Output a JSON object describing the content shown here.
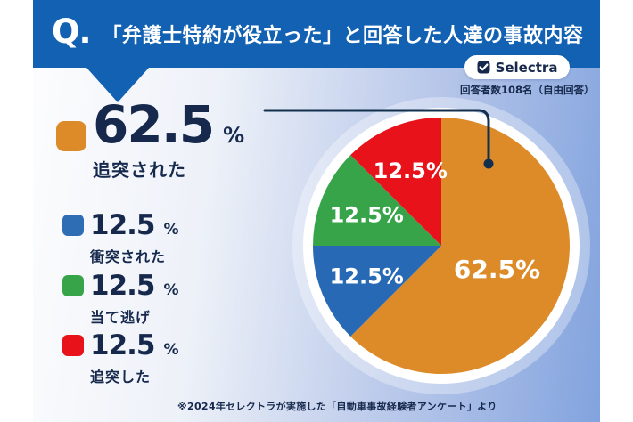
{
  "header": {
    "q_prefix": "Q.",
    "title": "「弁護士特約が役立った」と回答した人達の事故内容"
  },
  "brand": {
    "name": "Selectra",
    "icon": "check-square-icon"
  },
  "respondents_note": "回答者数108名（自由回答）",
  "footer_note": "※2024年セレクトラが実施した「自動車事故経験者アンケート」より",
  "colors": {
    "banner": "#1261B3",
    "background_right": "#82A3DE",
    "text_navy": "#16294D",
    "callout": "#12304E",
    "badge_bg": "#FFFFFF"
  },
  "legend": {
    "items": [
      {
        "value": "62.5",
        "unit": "%",
        "label": "追突された",
        "color": "#DD8B28",
        "emphasis": true
      },
      {
        "value": "12.5",
        "unit": "%",
        "label": "衝突された",
        "color": "#2E6CB3",
        "emphasis": false
      },
      {
        "value": "12.5",
        "unit": "%",
        "label": "当て逃げ",
        "color": "#37A44A",
        "emphasis": false
      },
      {
        "value": "12.5",
        "unit": "%",
        "label": "追突した",
        "color": "#E8121A",
        "emphasis": false
      }
    ]
  },
  "chart_data": {
    "type": "pie",
    "title": "「弁護士特約が役立った」と回答した人達の事故内容",
    "respondents": "回答者数108名（自由回答）",
    "unit": "%",
    "direction": "clockwise",
    "start_angle": "12-oclock",
    "legend_position": "left",
    "slices": [
      {
        "label": "追突された",
        "value": 62.5,
        "display": "62.5%",
        "color": "#DD8B28"
      },
      {
        "label": "衝突された",
        "value": 12.5,
        "display": "12.5%",
        "color": "#2769B4"
      },
      {
        "label": "当て逃げ",
        "value": 12.5,
        "display": "12.5%",
        "color": "#37A44A"
      },
      {
        "label": "追突した",
        "value": 12.5,
        "display": "12.5%",
        "color": "#E8121A"
      }
    ]
  }
}
